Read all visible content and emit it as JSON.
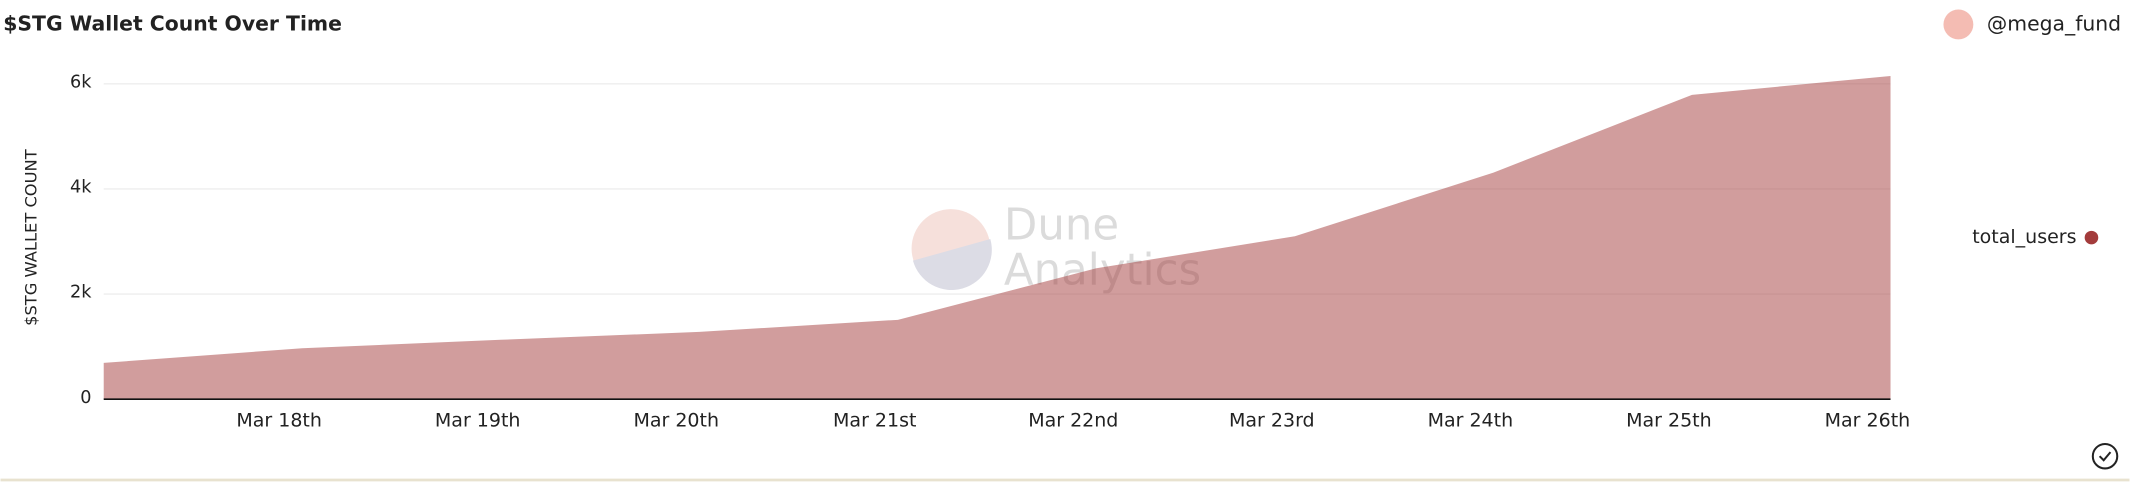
{
  "header": {
    "user": "@mega_fund"
  },
  "chart_data": {
    "type": "area",
    "title": "$STG Wallet Count Over Time",
    "y_label": "$STG WALLET COUNT",
    "watermark": [
      "Dune",
      "Analytics"
    ],
    "categories": [
      null,
      "Mar 18th",
      "Mar 19th",
      "Mar 20th",
      "Mar 21st",
      "Mar 22nd",
      "Mar 23rd",
      "Mar 24th",
      "Mar 25th",
      "Mar 26th"
    ],
    "series": [
      {
        "name": "total_users",
        "color": "#a33b3b",
        "values": [
          690,
          970,
          1130,
          1280,
          1510,
          2490,
          3100,
          4310,
          5790,
          6150
        ]
      }
    ],
    "ylim": [
      0,
      6200
    ],
    "yticks": [
      0,
      {
        "value": 2000,
        "label": "2k"
      },
      {
        "value": 4000,
        "label": "4k"
      },
      {
        "value": 6000,
        "label": "6k"
      }
    ],
    "grid": true
  }
}
